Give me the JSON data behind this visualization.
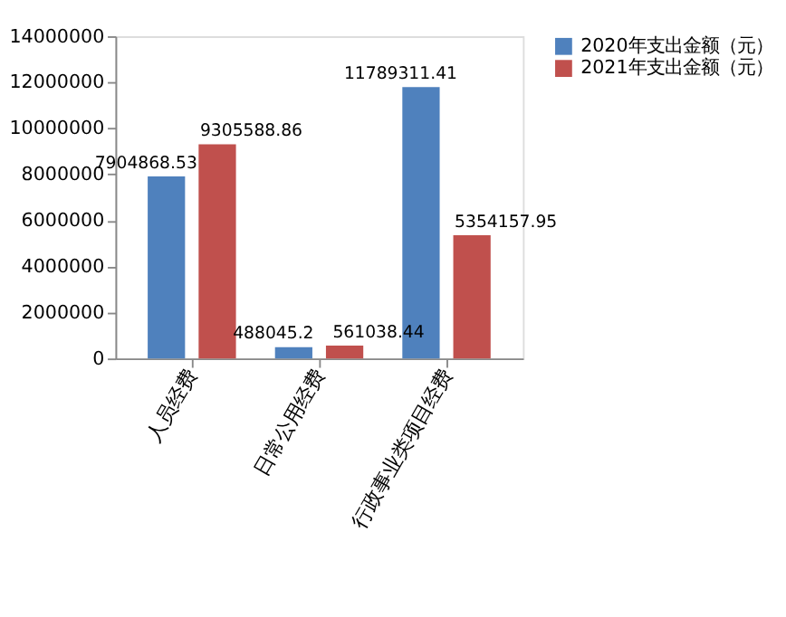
{
  "chart_data": {
    "type": "bar",
    "categories": [
      "人员经费",
      "日常公用经费",
      "行政事业类项目经费"
    ],
    "series": [
      {
        "name": "2020年支出金额（元）",
        "color": "#4f81bd",
        "values": [
          7904868.53,
          488045.2,
          11789311.41
        ]
      },
      {
        "name": "2021年支出金额（元）",
        "color": "#c0504d",
        "values": [
          9305588.86,
          561038.44,
          5354157.95
        ]
      }
    ],
    "ylim": [
      0,
      14000000
    ],
    "yticks": [
      0,
      2000000,
      4000000,
      6000000,
      8000000,
      10000000,
      12000000,
      14000000
    ],
    "data_labels": true,
    "grid": false,
    "legend": "right"
  }
}
